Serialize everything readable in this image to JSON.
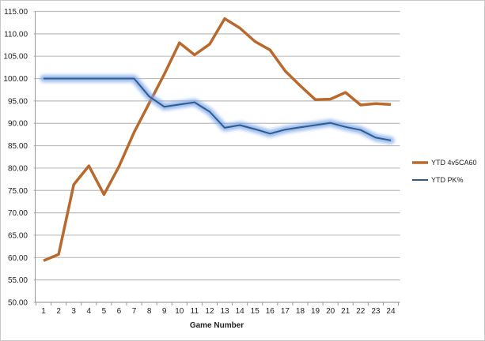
{
  "chart_data": {
    "type": "line",
    "title": "",
    "xlabel": "Game Number",
    "ylabel": "",
    "x": [
      1,
      2,
      3,
      4,
      5,
      6,
      7,
      8,
      9,
      10,
      11,
      12,
      13,
      14,
      15,
      16,
      17,
      18,
      19,
      20,
      21,
      22,
      23,
      24
    ],
    "ylim": [
      50,
      115
    ],
    "ytick_step": 5,
    "ytick_labels": [
      "50.00",
      "55.00",
      "60.00",
      "65.00",
      "70.00",
      "75.00",
      "80.00",
      "85.00",
      "90.00",
      "95.00",
      "100.00",
      "105.00",
      "110.00",
      "115.00"
    ],
    "grid": true,
    "legend_position": "right",
    "series": [
      {
        "name": "YTD 4v5CA60",
        "color": "#b8692e",
        "values": [
          59.3,
          60.7,
          76.3,
          80.5,
          74.1,
          80.4,
          88.0,
          94.5,
          101.0,
          108.0,
          105.3,
          107.7,
          113.4,
          111.3,
          108.3,
          106.4,
          101.7,
          98.4,
          95.3,
          95.4,
          96.9,
          94.1,
          94.4,
          94.2
        ]
      },
      {
        "name": "YTD PK%",
        "color": "#2f5b93",
        "glow": "#7fa9e6",
        "values": [
          100,
          100,
          100,
          100,
          100,
          100,
          100,
          96.0,
          93.7,
          94.2,
          94.7,
          92.6,
          89.0,
          89.6,
          88.7,
          87.7,
          88.6,
          89.1,
          89.6,
          90.1,
          89.2,
          88.5,
          86.8,
          86.2
        ]
      }
    ]
  }
}
